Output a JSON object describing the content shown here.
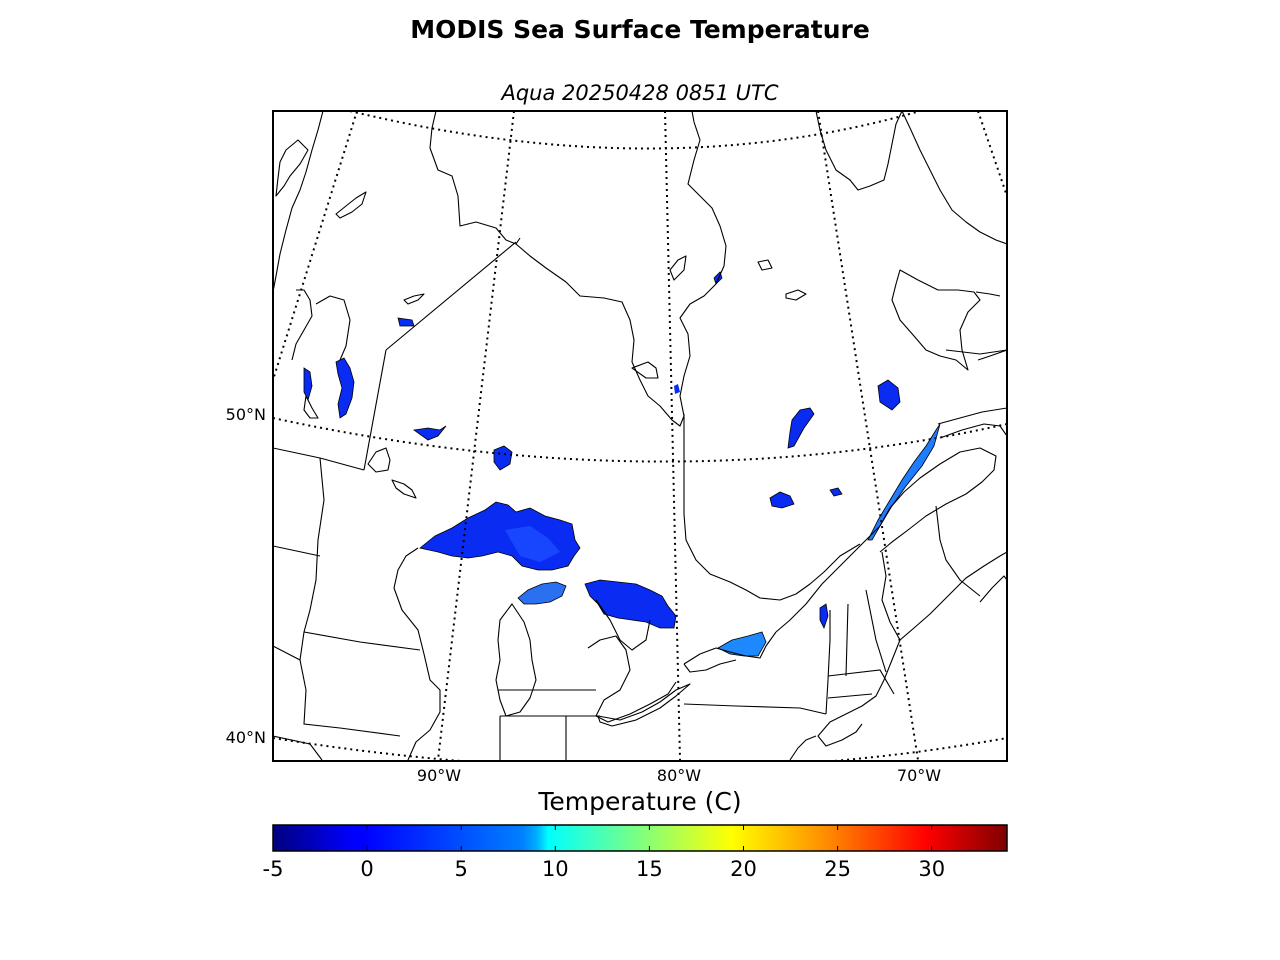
{
  "figure": {
    "title": "MODIS Sea Surface Temperature",
    "subtitle": "Aqua 20250428 0851 UTC"
  },
  "map": {
    "parallel_labels": [
      "50°N",
      "40°N"
    ],
    "meridian_labels": [
      "90°W",
      "80°W",
      "70°W"
    ]
  },
  "colorbar": {
    "label": "Temperature (C)",
    "min": -5,
    "max": 34,
    "ticks": [
      -5,
      0,
      5,
      10,
      15,
      20,
      25,
      30
    ],
    "tick_labels": [
      "-5",
      "0",
      "5",
      "10",
      "15",
      "20",
      "25",
      "30"
    ],
    "colormap": "jet"
  },
  "colors": {
    "cold": "#0000ff",
    "cool": "#0a3bff",
    "mid": "#1e88ff",
    "background": "#ffffff"
  }
}
